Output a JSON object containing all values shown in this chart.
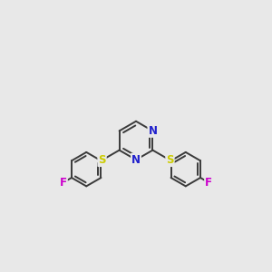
{
  "background_color": "#e8e8e8",
  "bond_color": "#3a3a3a",
  "N_color": "#2020cc",
  "S_color": "#cccc00",
  "F_color": "#cc00cc",
  "bond_width": 1.4,
  "font_size_atom": 8.5,
  "fig_width": 3.0,
  "fig_height": 3.0,
  "dpi": 100,
  "xlim": [
    0,
    12
  ],
  "ylim": [
    0,
    12
  ]
}
